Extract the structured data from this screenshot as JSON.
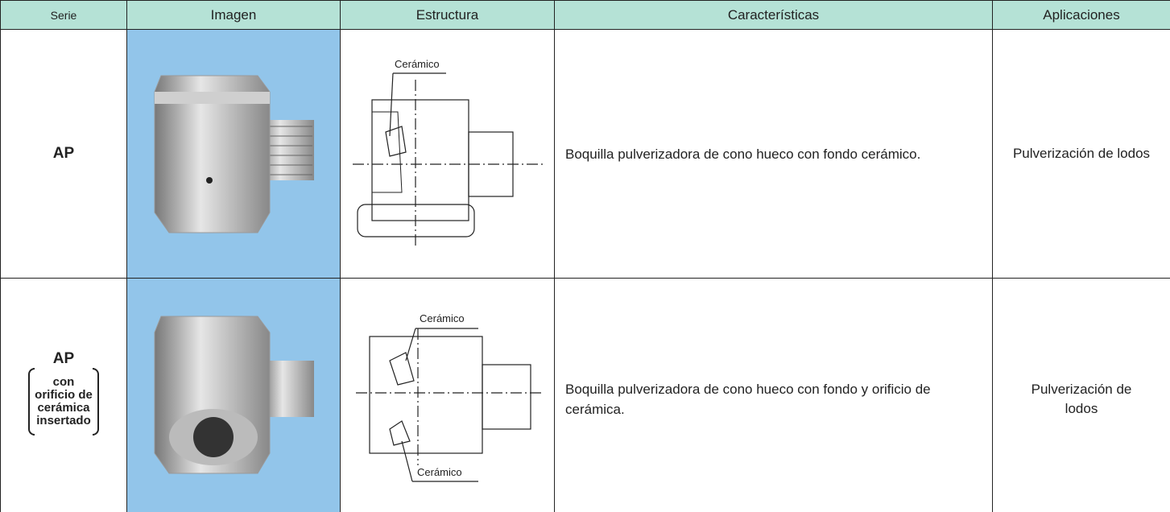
{
  "table": {
    "header": [
      "Serie",
      "Imagen",
      "Estructura",
      "Características",
      "Aplicaciones"
    ],
    "rows": [
      {
        "serie": "AP",
        "structure_labels": [
          "Cerámico"
        ],
        "features": "Boquilla pulverizadora de cono hueco con fondo cerámico.",
        "applications": "Pulverización de lodos"
      },
      {
        "serie": "AP",
        "serie_detail": [
          "con",
          "orificio de",
          "cerámica",
          "insertado"
        ],
        "structure_labels": [
          "Cerámico",
          "Cerámico"
        ],
        "features": "Boquilla pulverizadora de cono hueco con fondo y orificio de cerámica.",
        "applications": "Pulverización de lodos"
      }
    ]
  }
}
